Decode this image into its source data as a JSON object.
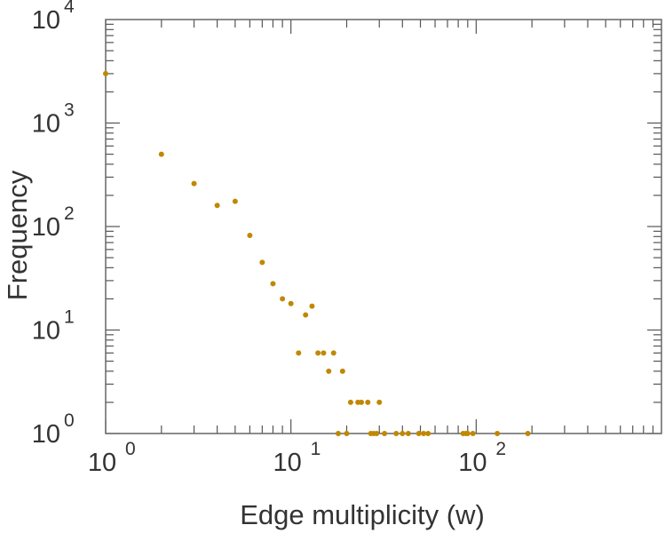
{
  "chart_data": {
    "type": "scatter",
    "title": "",
    "xlabel": "Edge multiplicity (w)",
    "ylabel": "Frequency",
    "xscale": "log",
    "yscale": "log",
    "xlim": [
      1,
      1000
    ],
    "ylim": [
      1,
      10000
    ],
    "grid": false,
    "marker_color": "#c08800",
    "x_tick_labels": [
      {
        "base": "10",
        "exp": "0"
      },
      {
        "base": "10",
        "exp": "1"
      },
      {
        "base": "10",
        "exp": "2"
      }
    ],
    "y_tick_labels": [
      {
        "base": "10",
        "exp": "0"
      },
      {
        "base": "10",
        "exp": "1"
      },
      {
        "base": "10",
        "exp": "2"
      },
      {
        "base": "10",
        "exp": "3"
      },
      {
        "base": "10",
        "exp": "4"
      }
    ],
    "points": [
      [
        1,
        3000
      ],
      [
        2,
        500
      ],
      [
        3,
        260
      ],
      [
        4,
        160
      ],
      [
        5,
        175
      ],
      [
        6,
        82
      ],
      [
        7,
        45
      ],
      [
        8,
        28
      ],
      [
        9,
        20
      ],
      [
        10,
        18
      ],
      [
        12,
        14
      ],
      [
        13,
        17
      ],
      [
        11,
        6
      ],
      [
        14,
        6
      ],
      [
        15,
        6
      ],
      [
        17,
        6
      ],
      [
        16,
        4
      ],
      [
        19,
        4
      ],
      [
        21,
        2
      ],
      [
        23,
        2
      ],
      [
        24,
        2
      ],
      [
        26,
        2
      ],
      [
        30,
        2
      ],
      [
        18,
        1
      ],
      [
        20,
        1
      ],
      [
        27,
        1
      ],
      [
        28,
        1
      ],
      [
        29,
        1
      ],
      [
        32,
        1
      ],
      [
        37,
        1
      ],
      [
        40,
        1
      ],
      [
        43,
        1
      ],
      [
        49,
        1
      ],
      [
        52,
        1
      ],
      [
        55,
        1
      ],
      [
        85,
        1
      ],
      [
        88,
        1
      ],
      [
        90,
        1
      ],
      [
        96,
        1
      ],
      [
        130,
        1
      ],
      [
        190,
        1
      ]
    ]
  }
}
